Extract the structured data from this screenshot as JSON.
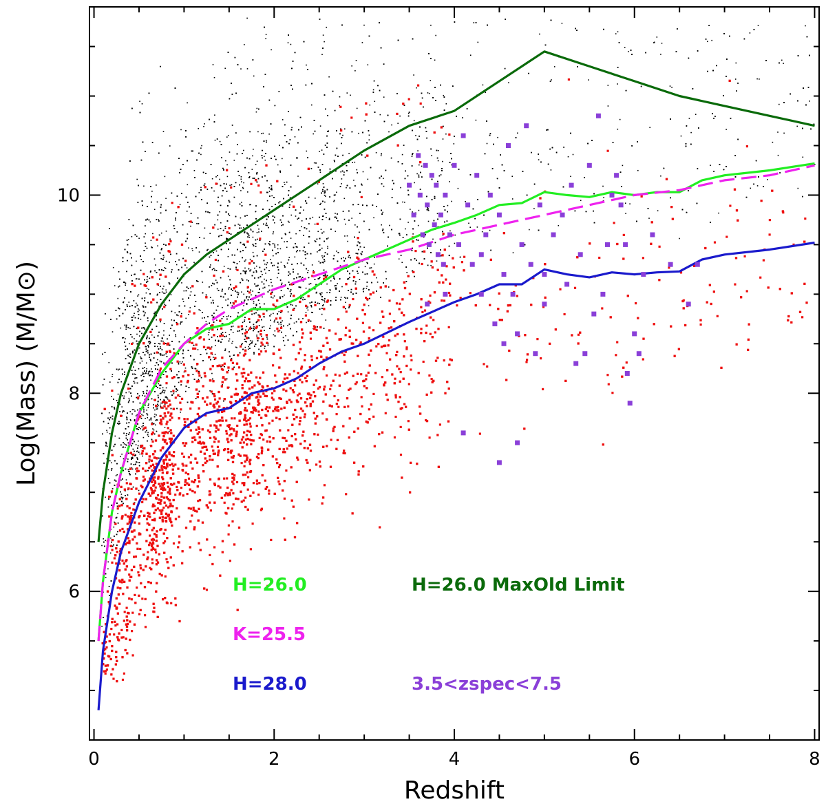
{
  "chart_data": {
    "type": "scatter",
    "title": "",
    "xlabel": "Redshift",
    "ylabel": "Log(Mass) (M/M⊙)",
    "xlim": [
      -0.05,
      8.05
    ],
    "ylim": [
      4.5,
      11.9
    ],
    "xticks": [
      {
        "value": 0,
        "label": "0"
      },
      {
        "value": 2,
        "label": "2"
      },
      {
        "value": 4,
        "label": "4"
      },
      {
        "value": 6,
        "label": "6"
      },
      {
        "value": 8,
        "label": "8"
      }
    ],
    "yticks": [
      {
        "value": 6,
        "label": "6"
      },
      {
        "value": 8,
        "label": "8"
      },
      {
        "value": 10,
        "label": "10"
      }
    ],
    "grid": false,
    "legend_position": "bottom-left inside plot",
    "legend": [
      {
        "label": "H=26.0",
        "color": "#22ee22"
      },
      {
        "label": "H=26.0 MaxOld Limit",
        "color": "#0a6a0a"
      },
      {
        "label": "K=25.5",
        "color": "#ee22ee"
      },
      {
        "label": "H=28.0",
        "color": "#1a1acc"
      },
      {
        "label": "3.5<zspec<7.5",
        "color": "#8a3fd8"
      }
    ],
    "lines": [
      {
        "name": "H=26.0 MaxOld Limit",
        "color": "#0a6a0a",
        "style": "solid",
        "x": [
          0.05,
          0.1,
          0.2,
          0.3,
          0.5,
          0.75,
          1.0,
          1.25,
          1.5,
          1.75,
          2.0,
          2.25,
          2.5,
          2.75,
          3.0,
          3.5,
          4.0,
          4.5,
          5.0,
          5.5,
          6.0,
          6.5,
          7.0,
          7.5,
          8.0
        ],
        "y": [
          6.5,
          7.0,
          7.6,
          8.0,
          8.5,
          8.9,
          9.2,
          9.4,
          9.55,
          9.7,
          9.85,
          10.0,
          10.15,
          10.3,
          10.45,
          10.7,
          10.85,
          11.15,
          11.45,
          11.3,
          11.15,
          11.0,
          10.9,
          10.8,
          10.7
        ]
      },
      {
        "name": "H=26.0",
        "color": "#22ee22",
        "style": "solid",
        "x": [
          0.05,
          0.1,
          0.2,
          0.3,
          0.5,
          0.75,
          1.0,
          1.25,
          1.5,
          1.75,
          2.0,
          2.25,
          2.5,
          2.75,
          3.0,
          3.25,
          3.5,
          3.75,
          4.0,
          4.25,
          4.5,
          4.75,
          5.0,
          5.25,
          5.5,
          5.75,
          6.0,
          6.25,
          6.5,
          6.75,
          7.0,
          7.5,
          8.0
        ],
        "y": [
          5.5,
          6.1,
          6.8,
          7.2,
          7.8,
          8.2,
          8.5,
          8.65,
          8.7,
          8.85,
          8.85,
          8.95,
          9.1,
          9.25,
          9.35,
          9.45,
          9.55,
          9.65,
          9.72,
          9.8,
          9.9,
          9.92,
          10.03,
          10.0,
          9.98,
          10.03,
          10.0,
          10.03,
          10.03,
          10.15,
          10.2,
          10.25,
          10.32
        ]
      },
      {
        "name": "K=25.5",
        "color": "#ee22ee",
        "style": "dashed",
        "x": [
          0.05,
          0.1,
          0.2,
          0.3,
          0.5,
          0.75,
          1.0,
          1.25,
          1.5,
          1.75,
          2.0,
          2.5,
          3.0,
          3.5,
          4.0,
          4.5,
          5.0,
          5.5,
          6.0,
          6.5,
          7.0,
          7.5,
          8.0
        ],
        "y": [
          5.5,
          6.1,
          6.8,
          7.2,
          7.8,
          8.25,
          8.5,
          8.7,
          8.85,
          8.95,
          9.05,
          9.2,
          9.35,
          9.45,
          9.6,
          9.7,
          9.8,
          9.9,
          10.0,
          10.05,
          10.15,
          10.2,
          10.3
        ]
      },
      {
        "name": "H=28.0",
        "color": "#1a1acc",
        "style": "solid",
        "x": [
          0.05,
          0.1,
          0.2,
          0.3,
          0.5,
          0.75,
          1.0,
          1.25,
          1.5,
          1.75,
          2.0,
          2.25,
          2.5,
          2.75,
          3.0,
          3.5,
          4.0,
          4.25,
          4.5,
          4.75,
          5.0,
          5.25,
          5.5,
          5.75,
          6.0,
          6.25,
          6.5,
          6.75,
          7.0,
          7.5,
          8.0
        ],
        "y": [
          4.8,
          5.4,
          6.0,
          6.4,
          6.9,
          7.35,
          7.65,
          7.8,
          7.85,
          8.0,
          8.05,
          8.15,
          8.3,
          8.42,
          8.5,
          8.72,
          8.92,
          9.0,
          9.1,
          9.1,
          9.25,
          9.2,
          9.17,
          9.22,
          9.2,
          9.22,
          9.23,
          9.35,
          9.4,
          9.45,
          9.52
        ]
      }
    ],
    "scatter_series": [
      {
        "name": "3.5<zspec<7.5",
        "color": "#8a3fd8",
        "marker": "square",
        "points": [
          [
            3.5,
            10.1
          ],
          [
            3.55,
            9.8
          ],
          [
            3.6,
            10.4
          ],
          [
            3.62,
            10.0
          ],
          [
            3.65,
            9.6
          ],
          [
            3.68,
            10.3
          ],
          [
            3.7,
            9.9
          ],
          [
            3.72,
            9.5
          ],
          [
            3.75,
            10.2
          ],
          [
            3.78,
            9.7
          ],
          [
            3.8,
            10.1
          ],
          [
            3.82,
            9.4
          ],
          [
            3.85,
            9.8
          ],
          [
            3.88,
            9.3
          ],
          [
            3.9,
            10.0
          ],
          [
            3.95,
            9.6
          ],
          [
            4.0,
            10.3
          ],
          [
            4.05,
            9.5
          ],
          [
            4.1,
            10.6
          ],
          [
            4.15,
            9.9
          ],
          [
            4.2,
            9.3
          ],
          [
            4.25,
            10.2
          ],
          [
            4.3,
            9.0
          ],
          [
            4.35,
            9.6
          ],
          [
            4.4,
            10.0
          ],
          [
            4.45,
            8.7
          ],
          [
            4.5,
            9.8
          ],
          [
            4.55,
            9.2
          ],
          [
            4.6,
            10.5
          ],
          [
            4.65,
            9.0
          ],
          [
            4.7,
            8.6
          ],
          [
            4.75,
            9.5
          ],
          [
            4.8,
            10.7
          ],
          [
            4.85,
            9.3
          ],
          [
            4.9,
            8.4
          ],
          [
            4.95,
            9.9
          ],
          [
            5.0,
            9.2
          ],
          [
            5.1,
            9.6
          ],
          [
            5.2,
            9.8
          ],
          [
            5.3,
            10.1
          ],
          [
            5.4,
            9.4
          ],
          [
            5.45,
            8.4
          ],
          [
            5.5,
            10.3
          ],
          [
            5.55,
            8.8
          ],
          [
            5.6,
            10.8
          ],
          [
            5.65,
            9.0
          ],
          [
            5.7,
            9.5
          ],
          [
            5.75,
            10.0
          ],
          [
            5.8,
            10.2
          ],
          [
            5.85,
            9.9
          ],
          [
            5.9,
            9.5
          ],
          [
            5.92,
            8.2
          ],
          [
            5.95,
            7.9
          ],
          [
            6.0,
            8.6
          ],
          [
            6.05,
            8.4
          ],
          [
            6.1,
            9.2
          ],
          [
            6.2,
            9.6
          ],
          [
            6.4,
            9.3
          ],
          [
            6.6,
            8.9
          ],
          [
            6.7,
            9.3
          ],
          [
            4.1,
            7.6
          ],
          [
            4.5,
            7.3
          ],
          [
            4.7,
            7.5
          ],
          [
            3.7,
            8.9
          ],
          [
            3.9,
            9.0
          ],
          [
            4.3,
            9.4
          ],
          [
            4.55,
            8.5
          ],
          [
            5.25,
            9.1
          ],
          [
            5.35,
            8.3
          ],
          [
            5.0,
            8.9
          ]
        ]
      },
      {
        "name": "photometric sample (red)",
        "color": "#ee1111",
        "marker": "square",
        "points": "generated-density"
      },
      {
        "name": "photometric sample (black)",
        "color": "#000000",
        "marker": "dot",
        "points": "generated-density"
      }
    ]
  }
}
